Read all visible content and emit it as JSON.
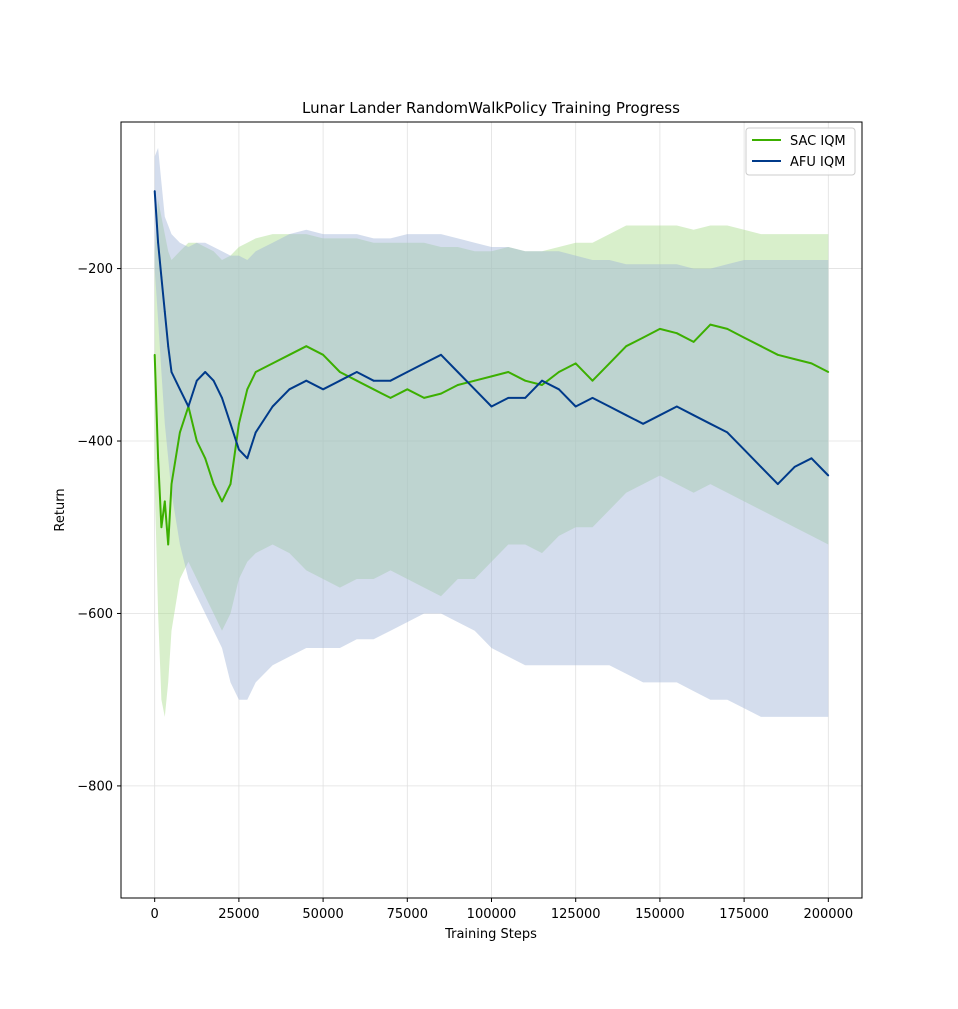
{
  "chart_data": {
    "type": "line",
    "title": "Lunar Lander RandomWalkPolicy Training Progress",
    "xlabel": "Training Steps",
    "ylabel": "Return",
    "xlim": [
      -10000,
      210000
    ],
    "ylim": [
      -930,
      -30
    ],
    "xticks": [
      0,
      25000,
      50000,
      75000,
      100000,
      125000,
      150000,
      175000,
      200000
    ],
    "yticks": [
      -800,
      -600,
      -400,
      -200
    ],
    "xtick_labels": [
      "0",
      "25000",
      "50000",
      "75000",
      "100000",
      "125000",
      "150000",
      "175000",
      "200000"
    ],
    "ytick_labels": [
      "−800",
      "−600",
      "−400",
      "−200"
    ],
    "grid": true,
    "legend_position": "top-right",
    "series": [
      {
        "name": "SAC IQM",
        "color": "#3caf00",
        "band_color": "#a8dc8c",
        "x": [
          0,
          1000,
          2000,
          3000,
          4000,
          5000,
          7500,
          10000,
          12500,
          15000,
          17500,
          20000,
          22500,
          25000,
          27500,
          30000,
          35000,
          40000,
          45000,
          50000,
          55000,
          60000,
          65000,
          70000,
          75000,
          80000,
          85000,
          90000,
          95000,
          100000,
          105000,
          110000,
          115000,
          120000,
          125000,
          130000,
          135000,
          140000,
          145000,
          150000,
          155000,
          160000,
          165000,
          170000,
          175000,
          180000,
          185000,
          190000,
          195000,
          200000
        ],
        "values": [
          -300,
          -420,
          -500,
          -470,
          -520,
          -450,
          -390,
          -360,
          -400,
          -420,
          -450,
          -470,
          -450,
          -380,
          -340,
          -320,
          -310,
          -300,
          -290,
          -300,
          -320,
          -330,
          -340,
          -350,
          -340,
          -350,
          -345,
          -335,
          -330,
          -325,
          -320,
          -330,
          -335,
          -320,
          -310,
          -330,
          -310,
          -290,
          -280,
          -270,
          -275,
          -285,
          -265,
          -270,
          -280,
          -290,
          -300,
          -305,
          -310,
          -320
        ],
        "lower": [
          -450,
          -600,
          -700,
          -720,
          -680,
          -620,
          -560,
          -540,
          -560,
          -580,
          -600,
          -620,
          -600,
          -560,
          -540,
          -530,
          -520,
          -530,
          -550,
          -560,
          -570,
          -560,
          -560,
          -550,
          -560,
          -570,
          -580,
          -560,
          -560,
          -540,
          -520,
          -520,
          -530,
          -510,
          -500,
          -500,
          -480,
          -460,
          -450,
          -440,
          -450,
          -460,
          -450,
          -460,
          -470,
          -480,
          -490,
          -500,
          -510,
          -520
        ],
        "upper": [
          -180,
          -120,
          -140,
          -160,
          -180,
          -190,
          -180,
          -170,
          -170,
          -175,
          -180,
          -190,
          -185,
          -175,
          -170,
          -165,
          -160,
          -160,
          -160,
          -165,
          -165,
          -165,
          -170,
          -170,
          -170,
          -170,
          -175,
          -175,
          -180,
          -180,
          -175,
          -180,
          -180,
          -175,
          -170,
          -170,
          -160,
          -150,
          -150,
          -150,
          -150,
          -155,
          -150,
          -150,
          -155,
          -160,
          -160,
          -160,
          -160,
          -160
        ]
      },
      {
        "name": "AFU IQM",
        "color": "#003a8a",
        "band_color": "#9fb4d6",
        "x": [
          0,
          1000,
          2000,
          3000,
          4000,
          5000,
          7500,
          10000,
          12500,
          15000,
          17500,
          20000,
          22500,
          25000,
          27500,
          30000,
          35000,
          40000,
          45000,
          50000,
          55000,
          60000,
          65000,
          70000,
          75000,
          80000,
          85000,
          90000,
          95000,
          100000,
          105000,
          110000,
          115000,
          120000,
          125000,
          130000,
          135000,
          140000,
          145000,
          150000,
          155000,
          160000,
          165000,
          170000,
          175000,
          180000,
          185000,
          190000,
          195000,
          200000
        ],
        "values": [
          -110,
          -170,
          -210,
          -250,
          -290,
          -320,
          -340,
          -360,
          -330,
          -320,
          -330,
          -350,
          -380,
          -410,
          -420,
          -390,
          -360,
          -340,
          -330,
          -340,
          -330,
          -320,
          -330,
          -330,
          -320,
          -310,
          -300,
          -320,
          -340,
          -360,
          -350,
          -350,
          -330,
          -340,
          -360,
          -350,
          -360,
          -370,
          -380,
          -370,
          -360,
          -370,
          -380,
          -390,
          -410,
          -430,
          -450,
          -430,
          -420,
          -440
        ],
        "lower": [
          -200,
          -260,
          -320,
          -380,
          -420,
          -460,
          -520,
          -560,
          -580,
          -600,
          -620,
          -640,
          -680,
          -700,
          -700,
          -680,
          -660,
          -650,
          -640,
          -640,
          -640,
          -630,
          -630,
          -620,
          -610,
          -600,
          -600,
          -610,
          -620,
          -640,
          -650,
          -660,
          -660,
          -660,
          -660,
          -660,
          -660,
          -670,
          -680,
          -680,
          -680,
          -690,
          -700,
          -700,
          -710,
          -720,
          -720,
          -720,
          -720,
          -720
        ],
        "upper": [
          -70,
          -60,
          -100,
          -140,
          -150,
          -160,
          -170,
          -175,
          -170,
          -170,
          -175,
          -180,
          -185,
          -185,
          -190,
          -180,
          -170,
          -160,
          -155,
          -160,
          -160,
          -160,
          -165,
          -165,
          -160,
          -160,
          -160,
          -165,
          -170,
          -175,
          -175,
          -180,
          -180,
          -180,
          -185,
          -190,
          -190,
          -195,
          -195,
          -195,
          -195,
          -200,
          -200,
          -195,
          -190,
          -190,
          -190,
          -190,
          -190,
          -190
        ]
      }
    ]
  }
}
